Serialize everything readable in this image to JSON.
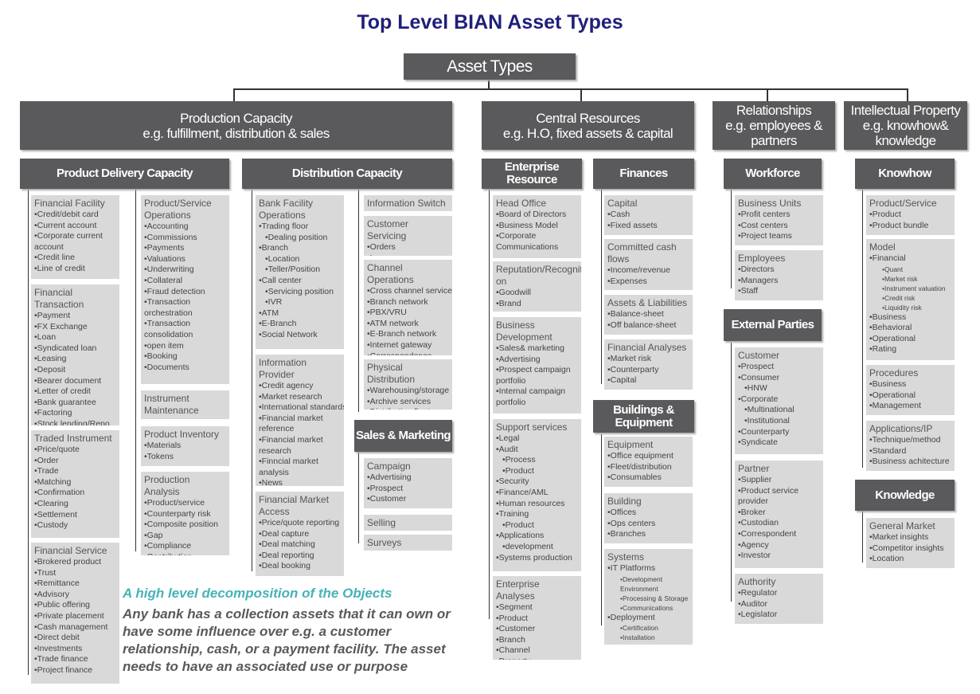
{
  "title": "Top Level BIAN Asset Types",
  "root": "Asset Types",
  "level1": [
    {
      "id": "prod",
      "lines": [
        "Production Capacity",
        "e.g. fulfillment, distribution & sales"
      ]
    },
    {
      "id": "central",
      "lines": [
        "Central Resources",
        "e.g. H.O, fixed assets & capital"
      ]
    },
    {
      "id": "rel",
      "lines": [
        "Relationships",
        "e.g. employees &",
        "partners"
      ]
    },
    {
      "id": "ip",
      "lines": [
        "Intellectual Property",
        "e.g. knowhow&",
        "knowledge"
      ]
    }
  ],
  "level2": [
    {
      "id": "pdc",
      "lines": [
        "Product Delivery Capacity"
      ]
    },
    {
      "id": "dist",
      "lines": [
        "Distribution Capacity"
      ]
    },
    {
      "id": "ent",
      "lines": [
        "Enterprise",
        "Resource"
      ]
    },
    {
      "id": "fin",
      "lines": [
        "Finances"
      ]
    },
    {
      "id": "work",
      "lines": [
        "Workforce"
      ]
    },
    {
      "id": "know",
      "lines": [
        "Knowhow"
      ]
    },
    {
      "id": "sales",
      "lines": [
        "Sales & Marketing"
      ]
    },
    {
      "id": "build",
      "lines": [
        "Buildings &",
        "Equipment"
      ]
    },
    {
      "id": "ext",
      "lines": [
        "External Parties"
      ]
    },
    {
      "id": "knowledge",
      "lines": [
        "Knowledge"
      ]
    }
  ],
  "boxes": [
    {
      "id": "b1",
      "title": [
        "Financial Facility"
      ],
      "items": [
        "•Credit/debit card",
        "•Current account",
        "•Corporate current",
        "account",
        "•Credit line",
        "•Line of credit"
      ]
    },
    {
      "id": "b2",
      "title": [
        "Financial Transaction"
      ],
      "items": [
        "•Payment",
        "•FX Exchange",
        "•Loan",
        "•Syndicated loan",
        "•Leasing",
        "•Deposit",
        "•Bearer document",
        "•Letter of credit",
        "•Bank guarantee",
        "•Factoring",
        "•Stock lending/Repo"
      ]
    },
    {
      "id": "b3",
      "title": [
        "Traded Instrument"
      ],
      "items": [
        "•Price/quote",
        "•Order",
        "•Trade",
        "•Matching",
        "•Confirmation",
        "•Clearing",
        "•Settlement",
        "•Custody"
      ]
    },
    {
      "id": "b4",
      "title": [
        "Financial Service"
      ],
      "items": [
        "•Brokered product",
        "•Trust",
        "•Remittance",
        "•Advisory",
        "•Public offering",
        "•Private placement",
        "•Cash management",
        "•Direct debit",
        "•Investments",
        "•Trade finance",
        "•Project finance"
      ]
    },
    {
      "id": "b5",
      "title": [
        "Product/Service",
        "Operations"
      ],
      "items": [
        "•Accounting",
        "•Commissions",
        "•Payments",
        "•Valuations",
        "•Underwriting",
        "•Collateral",
        "•Fraud detection",
        "•Transaction",
        "orchestration",
        "•Transaction",
        "consolidation",
        "•open item",
        "•Booking",
        "•Documents"
      ]
    },
    {
      "id": "b6",
      "title": [
        "Instrument",
        "Maintenance"
      ],
      "items": []
    },
    {
      "id": "b7",
      "title": [
        "Product Inventory"
      ],
      "items": [
        "•Materials",
        "•Tokens"
      ]
    },
    {
      "id": "b8",
      "title": [
        "Production Analysis"
      ],
      "items": [
        "•Product/service",
        "•Counterparty risk",
        "•Composite position",
        "•Gap",
        "•Compliance",
        "•Contribution"
      ]
    },
    {
      "id": "b9",
      "title": [
        "Bank Facility",
        "Operations"
      ],
      "items": [
        "•Trading floor",
        "  •Dealing position",
        "•Branch",
        "  •Location",
        "  •Teller/Position",
        "•Call center",
        "  •Servicing position",
        "  •IVR",
        "•ATM",
        "•E-Branch",
        "•Social Network"
      ]
    },
    {
      "id": "b10",
      "title": [
        "Information Provider"
      ],
      "items": [
        "•Credit agency",
        "•Market research",
        "•International standards",
        "•Financial market",
        "reference",
        "•Financial market",
        "research",
        "•Finncial market",
        "analysis",
        "•News"
      ]
    },
    {
      "id": "b11",
      "title": [
        "Financial Market",
        "Access"
      ],
      "items": [
        "•Price/quote reporting",
        "•Deal capture",
        "•Deal matching",
        "•Deal reporting",
        "•Deal booking"
      ]
    },
    {
      "id": "b12",
      "title": [
        "Information Switch"
      ],
      "items": []
    },
    {
      "id": "b13",
      "title": [
        "Customer Servicing"
      ],
      "items": [
        "•Orders",
        "•Issues"
      ]
    },
    {
      "id": "b14",
      "title": [
        "Channel Operations"
      ],
      "items": [
        "•Cross channel services",
        "•Branch network",
        "•PBX/VRU",
        "•ATM network",
        "•E-Branch network",
        "•Internet gateway",
        "•Correspondence"
      ]
    },
    {
      "id": "b15",
      "title": [
        "Physical Distribution"
      ],
      "items": [
        "•Warehousing/storage",
        "•Archive services",
        "•Distribution fleet"
      ]
    },
    {
      "id": "b16",
      "title": [
        "Campaign"
      ],
      "items": [
        "•Advertising",
        "•Prospect",
        "•Customer"
      ]
    },
    {
      "id": "b17",
      "title": [
        "Selling"
      ],
      "items": []
    },
    {
      "id": "b18",
      "title": [
        "Surveys"
      ],
      "items": []
    },
    {
      "id": "b19",
      "title": [
        "Head Office"
      ],
      "items": [
        "•Board of Directors",
        "•Business Model",
        "•Corporate",
        "Communications"
      ]
    },
    {
      "id": "b20",
      "title": [
        "Reputation/Recogniti",
        "on"
      ],
      "items": [
        "•Goodwill",
        "•Brand"
      ]
    },
    {
      "id": "b21",
      "title": [
        "Business",
        "Development"
      ],
      "items": [
        "•Sales& marketing",
        "•Advertising",
        "•Prospect campaign",
        "portfolio",
        "•Internal campaign",
        "portfolio"
      ]
    },
    {
      "id": "b22",
      "title": [
        "Support services"
      ],
      "items": [
        "•Legal",
        "•Audit",
        "  •Process",
        "  •Product",
        "•Security",
        "•Finance/AML",
        "•Human resources",
        "•Training",
        "  •Product",
        "•Applications",
        "  •development",
        "•Systems production"
      ]
    },
    {
      "id": "b23",
      "title": [
        "Enterprise Analyses"
      ],
      "items": [
        "•Segment",
        "•Product",
        "•Customer",
        "•Branch",
        "•Channel",
        "•Property"
      ]
    },
    {
      "id": "b24",
      "title": [
        "Capital"
      ],
      "items": [
        "•Cash",
        "•Fixed assets"
      ]
    },
    {
      "id": "b25",
      "title": [
        "Committed cash",
        "flows"
      ],
      "items": [
        "•Income/revenue",
        "•Expenses"
      ]
    },
    {
      "id": "b26",
      "title": [
        "Assets & Liabilities"
      ],
      "items": [
        "•Balance-sheet",
        "•Off balance-sheet"
      ]
    },
    {
      "id": "b27",
      "title": [
        "Financial Analyses"
      ],
      "items": [
        "•Market risk",
        "•Counterparty",
        "•Capital"
      ]
    },
    {
      "id": "b28",
      "title": [
        "Equipment"
      ],
      "items": [
        "•Office equipment",
        "•Fleet/distribution",
        "•Consumables"
      ]
    },
    {
      "id": "b29",
      "title": [
        "Building"
      ],
      "items": [
        "•Offices",
        "•Ops centers",
        "•Branches"
      ]
    },
    {
      "id": "b30",
      "title": [
        "Systems"
      ],
      "items": [
        "•IT Platforms",
        "~•Development",
        "~Environment",
        "~•Processing & Storage",
        "~•Communications",
        "•Deployment",
        "~•Certification",
        "~•Installation"
      ]
    },
    {
      "id": "b31",
      "title": [
        "Business Units"
      ],
      "items": [
        "•Profit centers",
        "•Cost centers",
        "•Project teams"
      ]
    },
    {
      "id": "b32",
      "title": [
        "Employees"
      ],
      "items": [
        "•Directors",
        "•Managers",
        "•Staff"
      ]
    },
    {
      "id": "b33",
      "title": [
        "Customer"
      ],
      "items": [
        "•Prospect",
        "•Consumer",
        "  •HNW",
        "•Corporate",
        "  •Multinational",
        "  •Institutional",
        "•Counterparty",
        "•Syndicate"
      ]
    },
    {
      "id": "b34",
      "title": [
        "Partner"
      ],
      "items": [
        "•Supplier",
        "•Product service",
        "provider",
        "•Broker",
        "•Custodian",
        "•Correspondent",
        "•Agency",
        "•Investor"
      ]
    },
    {
      "id": "b35",
      "title": [
        "Authority"
      ],
      "items": [
        "•Regulator",
        "•Auditor",
        "•Legislator"
      ]
    },
    {
      "id": "b36",
      "title": [
        "Product/Service"
      ],
      "items": [
        "•Product",
        "•Product bundle"
      ]
    },
    {
      "id": "b37",
      "title": [
        "Model"
      ],
      "items": [
        "•Financial",
        "~•Quant",
        "~•Market risk",
        "~•Instrument valuation",
        "~•Credit risk",
        "~•Liquidity risk",
        "•Business",
        "•Behavioral",
        "•Operational",
        "•Rating"
      ]
    },
    {
      "id": "b38",
      "title": [
        "Procedures"
      ],
      "items": [
        "•Business",
        "•Operational",
        "•Management"
      ]
    },
    {
      "id": "b39",
      "title": [
        "Applications/IP"
      ],
      "items": [
        "•Technique/method",
        "•Standard",
        "•Business achitecture"
      ]
    },
    {
      "id": "b40",
      "title": [
        "General Market"
      ],
      "items": [
        "•Market insights",
        "•Competitor insights",
        "•Location"
      ]
    }
  ],
  "note": {
    "title": "A high level decomposition of the Objects",
    "body": [
      "Any bank has a collection assets that it can own or",
      "have some influence over e.g. a customer",
      "relationship, cash, or a payment facility.  The asset",
      "needs to have an associated use or purpose"
    ]
  }
}
